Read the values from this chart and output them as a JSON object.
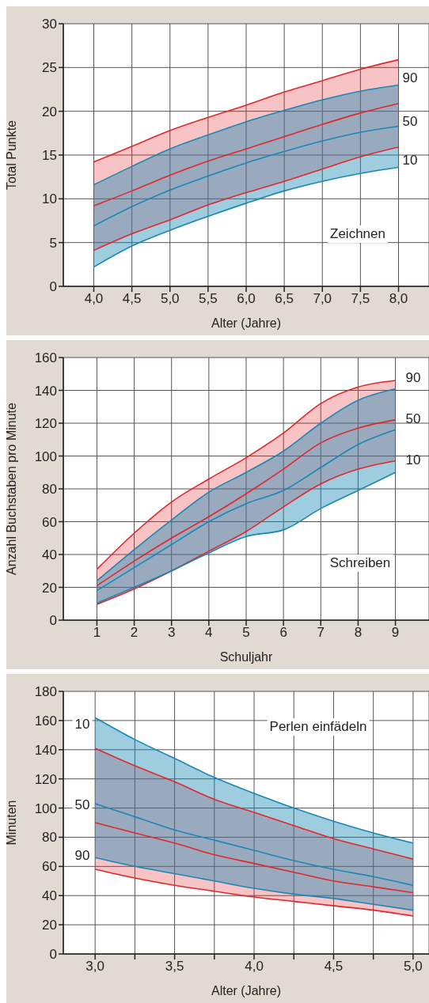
{
  "chart_data": [
    {
      "type": "line",
      "xlabel": "Alter (Jahre)",
      "ylabel": "Total Punkte",
      "x": [
        4.0,
        4.5,
        5.0,
        5.5,
        6.0,
        6.5,
        7.0,
        7.5,
        8.0
      ],
      "series": [
        {
          "color": "#e3262a",
          "values": [
            9.2,
            10.9,
            12.7,
            14.3,
            15.7,
            17.1,
            18.5,
            19.8,
            20.9
          ],
          "lower": [
            4.1,
            6.0,
            7.6,
            9.3,
            10.7,
            12.0,
            13.4,
            14.8,
            15.9
          ],
          "upper": [
            14.2,
            16.0,
            17.8,
            19.3,
            20.7,
            22.2,
            23.5,
            24.8,
            25.9
          ]
        },
        {
          "color": "#1a87b5",
          "values": [
            6.9,
            9.1,
            11.0,
            12.6,
            14.1,
            15.4,
            16.6,
            17.6,
            18.3
          ],
          "lower": [
            2.2,
            4.6,
            6.4,
            8.0,
            9.5,
            10.9,
            12.0,
            12.9,
            13.6
          ],
          "upper": [
            11.6,
            13.7,
            15.7,
            17.3,
            18.8,
            20.1,
            21.3,
            22.3,
            23.0
          ]
        },
        {
          "color": "#e3262a",
          "values": [
            14.2,
            16.0,
            17.8,
            19.3,
            20.7,
            22.2,
            23.5,
            24.8,
            25.9
          ]
        },
        {
          "color": "#e3262a",
          "values": [
            4.1,
            6.0,
            7.6,
            9.3,
            10.7,
            12.0,
            13.4,
            14.8,
            15.9
          ]
        },
        {
          "color": "#1a87b5",
          "values": [
            11.6,
            13.7,
            15.7,
            17.3,
            18.8,
            20.1,
            21.3,
            22.3,
            23.0
          ]
        },
        {
          "color": "#1a87b5",
          "values": [
            2.2,
            4.6,
            6.4,
            8.0,
            9.5,
            10.9,
            12.0,
            12.9,
            13.6
          ]
        }
      ],
      "xlim": [
        3.6,
        8.4
      ],
      "ylim": [
        0,
        30
      ],
      "xticks": [
        {
          "value": 4.0,
          "label": "4,0"
        },
        {
          "value": 4.5,
          "label": "4,5"
        },
        {
          "value": 5.0,
          "label": "5,0"
        },
        {
          "value": 5.5,
          "label": "5,5"
        },
        {
          "value": 6.0,
          "label": "6,0"
        },
        {
          "value": 6.5,
          "label": "6,5"
        },
        {
          "value": 7.0,
          "label": "7,0"
        },
        {
          "value": 7.5,
          "label": "7,5"
        },
        {
          "value": 8.0,
          "label": "8,0"
        }
      ],
      "yticks": [
        0,
        5,
        10,
        15,
        20,
        25,
        30
      ],
      "grid": true,
      "line_style": "solid",
      "annotations": [
        "90",
        "50",
        "10",
        "Zeichnen"
      ]
    },
    {
      "type": "line",
      "xlabel": "Schuljahr",
      "ylabel": "Anzahl Buchstaben pro Minute",
      "x": [
        1,
        2,
        3,
        4,
        5,
        6,
        7,
        8,
        9
      ],
      "series": [
        {
          "color": "#e3262a",
          "values": [
            21,
            36,
            50,
            63,
            77,
            92,
            108,
            117,
            122
          ],
          "lower": [
            9.6,
            19,
            30,
            42,
            54,
            69,
            83,
            92,
            97
          ],
          "upper": [
            31,
            53,
            72,
            86,
            99,
            114,
            132,
            142,
            146
          ]
        },
        {
          "color": "#1a87b5",
          "values": [
            18,
            32,
            46,
            60,
            71,
            79,
            93,
            107,
            116
          ],
          "lower": [
            10.4,
            20,
            30,
            41,
            51,
            55,
            68,
            79,
            90
          ],
          "upper": [
            24,
            43,
            61,
            78,
            90,
            103,
            120,
            134,
            141
          ]
        },
        {
          "color": "#e3262a",
          "values": [
            31,
            53,
            72,
            86,
            99,
            114,
            132,
            142,
            146
          ]
        },
        {
          "color": "#e3262a",
          "values": [
            9.6,
            19,
            30,
            42,
            54,
            69,
            83,
            92,
            97
          ]
        },
        {
          "color": "#1a87b5",
          "values": [
            24,
            43,
            61,
            78,
            90,
            103,
            120,
            134,
            141
          ]
        },
        {
          "color": "#1a87b5",
          "values": [
            10.4,
            20,
            30,
            41,
            51,
            55,
            68,
            79,
            90
          ]
        }
      ],
      "xlim": [
        0.1,
        9.9
      ],
      "ylim": [
        0,
        160
      ],
      "xticks": [
        1,
        2,
        3,
        4,
        5,
        6,
        7,
        8,
        9
      ],
      "yticks": [
        0,
        20,
        40,
        60,
        80,
        100,
        120,
        140,
        160
      ],
      "grid": true,
      "line_style": "solid",
      "annotations": [
        "90",
        "50",
        "10",
        "Schreiben"
      ]
    },
    {
      "type": "line",
      "xlabel": "Alter (Jahre)",
      "ylabel": "Minuten",
      "x": [
        3.0,
        3.25,
        3.5,
        3.75,
        4.0,
        4.25,
        4.5,
        4.75,
        5.0
      ],
      "series": [
        {
          "color": "#e3262a",
          "values": [
            90,
            83,
            76,
            68,
            62,
            56,
            50,
            46,
            42
          ],
          "lower": [
            58,
            52,
            47,
            43,
            39,
            36,
            33,
            30,
            26
          ],
          "upper": [
            141,
            129,
            118,
            106,
            97,
            88,
            79,
            72,
            65
          ]
        },
        {
          "color": "#1a87b5",
          "values": [
            103,
            94,
            85,
            78,
            71,
            64,
            58,
            53,
            47
          ],
          "lower": [
            66,
            60,
            55,
            50,
            45,
            41,
            38,
            34,
            30
          ],
          "upper": [
            162,
            147,
            134,
            121,
            110,
            100,
            91,
            83,
            76
          ]
        },
        {
          "color": "#e3262a",
          "values": [
            58,
            52,
            47,
            43,
            39,
            36,
            33,
            30,
            26
          ]
        },
        {
          "color": "#e3262a",
          "values": [
            141,
            129,
            118,
            106,
            97,
            88,
            79,
            72,
            65
          ]
        },
        {
          "color": "#1a87b5",
          "values": [
            66,
            60,
            55,
            50,
            45,
            41,
            38,
            34,
            30
          ]
        },
        {
          "color": "#1a87b5",
          "values": [
            162,
            147,
            134,
            121,
            110,
            100,
            91,
            83,
            76
          ]
        }
      ],
      "xlim": [
        2.8,
        5.1
      ],
      "ylim": [
        0,
        180
      ],
      "xticks": [
        {
          "value": 3.0,
          "label": "3,0"
        },
        {
          "value": 3.25,
          "label": null
        },
        {
          "value": 3.5,
          "label": "3,5"
        },
        {
          "value": 3.75,
          "label": null
        },
        {
          "value": 4.0,
          "label": "4,0"
        },
        {
          "value": 4.25,
          "label": null
        },
        {
          "value": 4.5,
          "label": "4,5"
        },
        {
          "value": 4.75,
          "label": null
        },
        {
          "value": 5.0,
          "label": "5,0"
        }
      ],
      "yticks": [
        0,
        20,
        40,
        60,
        80,
        100,
        120,
        140,
        160,
        180
      ],
      "grid": true,
      "line_style": "solid",
      "annotations": [
        "10",
        "50",
        "90",
        "Perlen einfädeln"
      ]
    }
  ]
}
